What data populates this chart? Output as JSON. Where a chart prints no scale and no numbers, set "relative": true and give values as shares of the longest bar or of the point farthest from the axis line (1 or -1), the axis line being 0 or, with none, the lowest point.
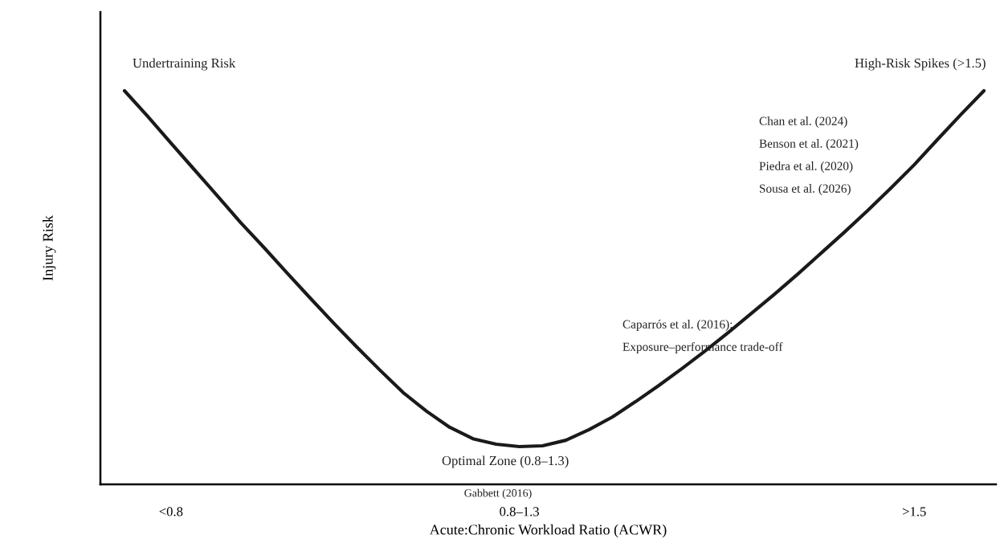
{
  "chart_data": {
    "type": "line",
    "relative": true,
    "xlabel": "Acute:Chronic Workload Ratio (ACWR)",
    "ylabel": "Injury Risk",
    "categories": [
      null,
      null,
      "<0.8",
      null,
      null,
      null,
      null,
      null,
      null,
      null,
      null,
      null,
      null,
      null,
      null,
      null,
      null,
      "0.8–1.3",
      null,
      null,
      null,
      null,
      null,
      null,
      null,
      null,
      null,
      null,
      null,
      null,
      null,
      null,
      null,
      null,
      ">1.5",
      null,
      null,
      null
    ],
    "series": [
      {
        "color": "#1a1a1a",
        "values": [
          1.0,
          0.935,
          0.867,
          0.8,
          0.733,
          0.665,
          0.602,
          0.537,
          0.473,
          0.41,
          0.349,
          0.29,
          0.233,
          0.186,
          0.145,
          0.116,
          0.102,
          0.096,
          0.098,
          0.112,
          0.139,
          0.171,
          0.21,
          0.251,
          0.294,
          0.339,
          0.386,
          0.435,
          0.484,
          0.535,
          0.588,
          0.641,
          0.696,
          0.753,
          0.812,
          0.876,
          0.939,
          1.0
        ]
      }
    ],
    "annotations": [
      "Undertraining Risk",
      "High-Risk Spikes (>1.5)",
      "Chan et al. (2024)",
      "Benson et al. (2021)",
      "Piedra et al. (2020)",
      "Sousa et al. (2026)",
      "Caparrós et al. (2016):",
      "Exposure–performance trade-off",
      "Optimal Zone (0.8–1.3)",
      "Gabbett (2016)"
    ],
    "grid": false,
    "legend": false,
    "marker": "none",
    "line_style": "solid"
  }
}
